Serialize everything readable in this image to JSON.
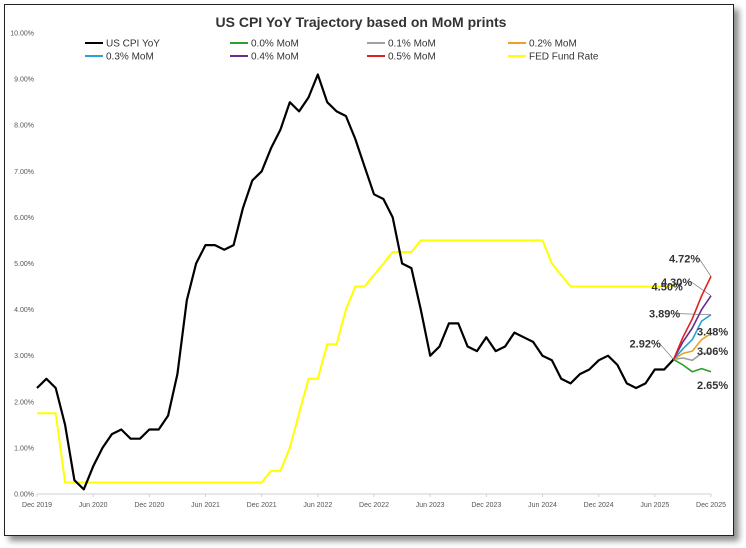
{
  "chart_data": {
    "type": "line",
    "title": "US CPI YoY Trajectory based on MoM prints",
    "xlabel": "",
    "ylabel": "",
    "ylim": [
      0,
      10
    ],
    "y_ticks": [
      "0.00%",
      "1.00%",
      "2.00%",
      "3.00%",
      "4.00%",
      "5.00%",
      "6.00%",
      "7.00%",
      "8.00%",
      "9.00%",
      "10.00%"
    ],
    "x_ticks": [
      {
        "label": "Dec 2019",
        "x": 0
      },
      {
        "label": "Jun 2020",
        "x": 6
      },
      {
        "label": "Dec 2020",
        "x": 12
      },
      {
        "label": "Jun 2021",
        "x": 18
      },
      {
        "label": "Dec 2021",
        "x": 24
      },
      {
        "label": "Jun 2022",
        "x": 30
      },
      {
        "label": "Dec 2022",
        "x": 36
      },
      {
        "label": "Jun 2023",
        "x": 42
      },
      {
        "label": "Dec 2023",
        "x": 48
      },
      {
        "label": "Jun 2024",
        "x": 54
      },
      {
        "label": "Dec 2024",
        "x": 60
      },
      {
        "label": "Jun 2025",
        "x": 66
      },
      {
        "label": "Dec 2025",
        "x": 72
      }
    ],
    "grid": false,
    "legend_position": "top",
    "series": [
      {
        "name": "US CPI YoY",
        "color": "#000000",
        "x": [
          0,
          1,
          2,
          3,
          4,
          5,
          6,
          7,
          8,
          9,
          10,
          11,
          12,
          13,
          14,
          15,
          16,
          17,
          18,
          19,
          20,
          21,
          22,
          23,
          24,
          25,
          26,
          27,
          28,
          29,
          30,
          31,
          32,
          33,
          34,
          35,
          36,
          37,
          38,
          39,
          40,
          41,
          42,
          43,
          44,
          45,
          46,
          47,
          48,
          49,
          50,
          51,
          52,
          53,
          54,
          55,
          56,
          57,
          58,
          59,
          60,
          61,
          62,
          63,
          64,
          65,
          66,
          67,
          68
        ],
        "values": [
          2.3,
          2.5,
          2.3,
          1.5,
          0.3,
          0.1,
          0.6,
          1.0,
          1.3,
          1.4,
          1.2,
          1.2,
          1.4,
          1.4,
          1.7,
          2.6,
          4.2,
          5.0,
          5.4,
          5.4,
          5.3,
          5.4,
          6.2,
          6.8,
          7.0,
          7.5,
          7.9,
          8.5,
          8.3,
          8.6,
          9.1,
          8.5,
          8.3,
          8.2,
          7.7,
          7.1,
          6.5,
          6.4,
          6.0,
          5.0,
          4.9,
          4.0,
          3.0,
          3.2,
          3.7,
          3.7,
          3.2,
          3.1,
          3.4,
          3.1,
          3.2,
          3.5,
          3.4,
          3.3,
          3.0,
          2.9,
          2.5,
          2.4,
          2.6,
          2.7,
          2.9,
          3.0,
          2.8,
          2.4,
          2.3,
          2.4,
          2.7,
          2.7,
          2.92
        ]
      },
      {
        "name": "0.0% MoM",
        "color": "#2ca02c",
        "x": [
          68,
          69,
          70,
          71,
          72
        ],
        "values": [
          2.92,
          2.8,
          2.65,
          2.72,
          2.65
        ]
      },
      {
        "name": "0.1% MoM",
        "color": "#a0a0a0",
        "x": [
          68,
          69,
          70,
          71,
          72
        ],
        "values": [
          2.92,
          2.95,
          2.9,
          3.05,
          3.06
        ]
      },
      {
        "name": "0.2% MoM",
        "color": "#f0a020",
        "x": [
          68,
          69,
          70,
          71,
          72
        ],
        "values": [
          2.92,
          3.05,
          3.1,
          3.35,
          3.48
        ]
      },
      {
        "name": "0.3% MoM",
        "color": "#2aa0d8",
        "x": [
          68,
          69,
          70,
          71,
          72
        ],
        "values": [
          2.92,
          3.15,
          3.35,
          3.75,
          3.89
        ]
      },
      {
        "name": "0.4% MoM",
        "color": "#6a2c91",
        "x": [
          68,
          69,
          70,
          71,
          72
        ],
        "values": [
          2.92,
          3.3,
          3.6,
          4.0,
          4.3
        ]
      },
      {
        "name": "0.5% MoM",
        "color": "#e02020",
        "x": [
          68,
          69,
          70,
          71,
          72
        ],
        "values": [
          2.92,
          3.4,
          3.8,
          4.3,
          4.72
        ]
      },
      {
        "name": "FED Fund Rate",
        "color": "#ffff00",
        "x": [
          0,
          1,
          2,
          3,
          4,
          24,
          25,
          26,
          27,
          28,
          29,
          30,
          31,
          32,
          33,
          34,
          35,
          36,
          37,
          38,
          39,
          40,
          41,
          42,
          43,
          44,
          54,
          55,
          56,
          57,
          58,
          68
        ],
        "values": [
          1.75,
          1.75,
          1.75,
          0.25,
          0.25,
          0.25,
          0.5,
          0.5,
          1.0,
          1.75,
          2.5,
          2.5,
          3.25,
          3.25,
          4.0,
          4.5,
          4.5,
          4.75,
          5.0,
          5.25,
          5.25,
          5.25,
          5.5,
          5.5,
          5.5,
          5.5,
          5.5,
          5.0,
          4.75,
          4.5,
          4.5,
          4.5
        ]
      }
    ],
    "annotations": [
      {
        "text": "2.92%",
        "x": 68,
        "y": 2.92
      },
      {
        "text": "4.72%",
        "x": 72,
        "y": 4.72
      },
      {
        "text": "4.30%",
        "x": 72,
        "y": 4.3
      },
      {
        "text": "4.50%",
        "x": 68,
        "y": 4.5
      },
      {
        "text": "3.89%",
        "x": 72,
        "y": 3.89
      },
      {
        "text": "3.48%",
        "x": 72,
        "y": 3.48
      },
      {
        "text": "3.06%",
        "x": 72,
        "y": 3.06
      },
      {
        "text": "2.65%",
        "x": 72,
        "y": 2.65
      }
    ]
  }
}
